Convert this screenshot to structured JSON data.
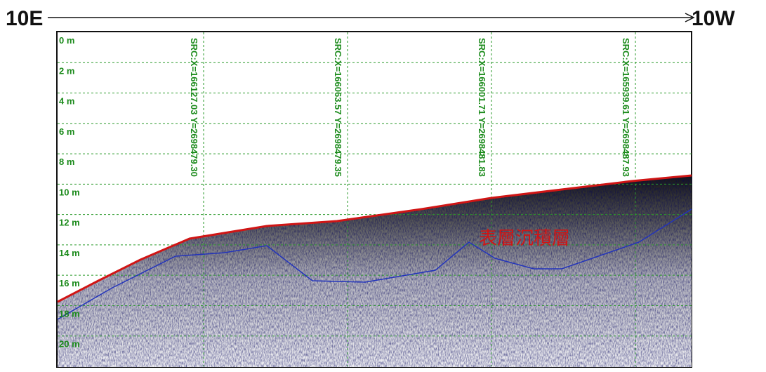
{
  "header": {
    "start_label": "10E",
    "end_label": "10W"
  },
  "depth_labels": [
    "0 m",
    "2 m",
    "4 m",
    "6 m",
    "8 m",
    "10 m",
    "12 m",
    "14 m",
    "16 m",
    "18 m",
    "20 m"
  ],
  "src_labels": [
    "SRC:X=166127.03 Y=2698479.30",
    "SRC:X=166063.57 Y=2698479.35",
    "SRC:X=166001.71 Y=2698481.83",
    "SRC:X=165939.61 Y=2698487.93"
  ],
  "annotation": "表層沉積層"
}
